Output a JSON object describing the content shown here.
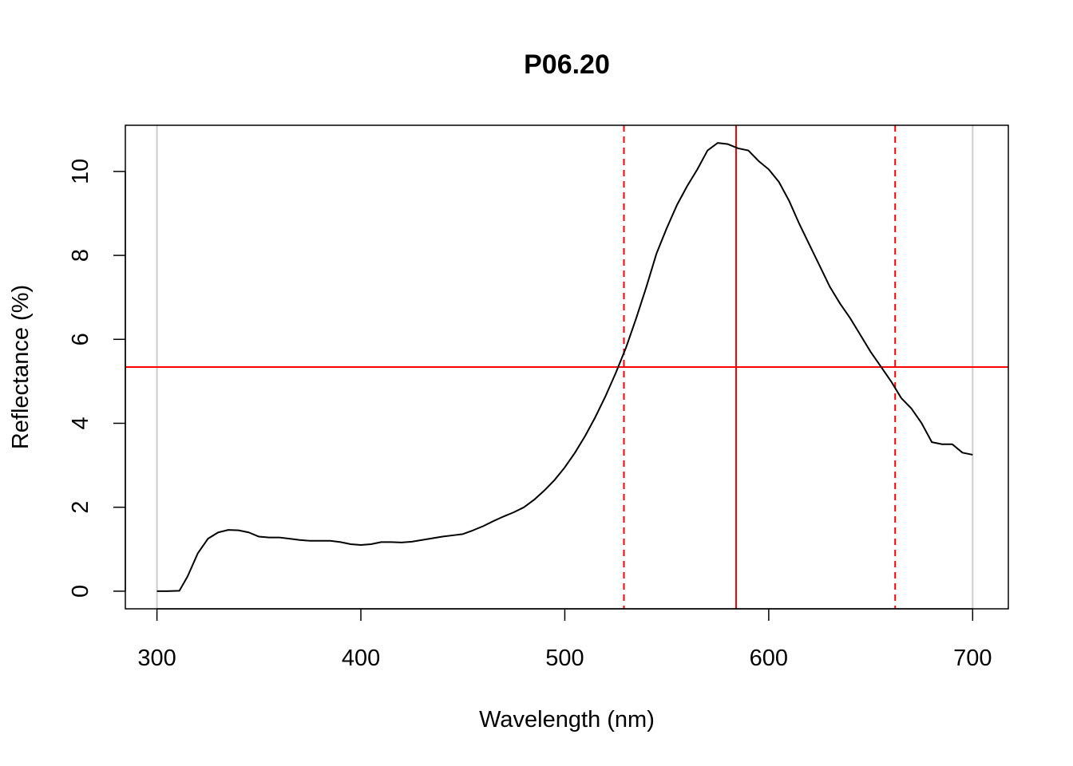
{
  "chart_data": {
    "type": "line",
    "title": "P06.20",
    "xlabel": "Wavelength (nm)",
    "ylabel": "Reflectance (%)",
    "xlim": [
      284.5,
      717.5
    ],
    "ylim": [
      -0.42,
      11.1
    ],
    "xticks": [
      300,
      400,
      500,
      600,
      700
    ],
    "yticks": [
      0,
      2,
      4,
      6,
      8,
      10
    ],
    "grid": false,
    "legend": "none",
    "series": [
      {
        "color": "#000000",
        "x": [
          300,
          305,
          311,
          315,
          320,
          325,
          330,
          335,
          340,
          345,
          350,
          355,
          360,
          365,
          370,
          375,
          380,
          385,
          390,
          395,
          400,
          405,
          410,
          415,
          420,
          425,
          430,
          435,
          440,
          445,
          450,
          455,
          460,
          465,
          470,
          475,
          480,
          485,
          490,
          495,
          500,
          505,
          510,
          515,
          520,
          525,
          530,
          535,
          540,
          545,
          550,
          555,
          560,
          565,
          570,
          575,
          580,
          585,
          590,
          595,
          600,
          605,
          610,
          615,
          620,
          625,
          630,
          635,
          640,
          645,
          650,
          655,
          660,
          665,
          670,
          675,
          680,
          685,
          690,
          695,
          700
        ],
        "y": [
          0,
          0,
          0.01,
          0.35,
          0.9,
          1.25,
          1.4,
          1.46,
          1.45,
          1.4,
          1.3,
          1.28,
          1.28,
          1.25,
          1.22,
          1.2,
          1.2,
          1.2,
          1.17,
          1.12,
          1.1,
          1.12,
          1.17,
          1.17,
          1.16,
          1.18,
          1.22,
          1.26,
          1.3,
          1.33,
          1.36,
          1.45,
          1.55,
          1.67,
          1.78,
          1.88,
          2.0,
          2.18,
          2.4,
          2.65,
          2.95,
          3.3,
          3.7,
          4.15,
          4.65,
          5.2,
          5.8,
          6.5,
          7.25,
          8.05,
          8.65,
          9.2,
          9.65,
          10.05,
          10.5,
          10.68,
          10.65,
          10.55,
          10.5,
          10.25,
          10.05,
          9.75,
          9.3,
          8.75,
          8.25,
          7.75,
          7.25,
          6.85,
          6.5,
          6.1,
          5.7,
          5.35,
          5.0,
          4.6,
          4.35,
          4.0,
          3.55,
          3.5,
          3.5,
          3.3,
          3.25
        ]
      }
    ],
    "reference_lines": {
      "color": "#ff0000",
      "horizontal": [
        {
          "y": 5.34,
          "style": "solid"
        }
      ],
      "vertical": [
        {
          "x": 529,
          "style": "dashed"
        },
        {
          "x": 584,
          "style": "solid"
        },
        {
          "x": 662,
          "style": "dashed"
        }
      ],
      "range_bounds": {
        "color": "#cccccc",
        "x": [
          300,
          700
        ]
      }
    }
  }
}
